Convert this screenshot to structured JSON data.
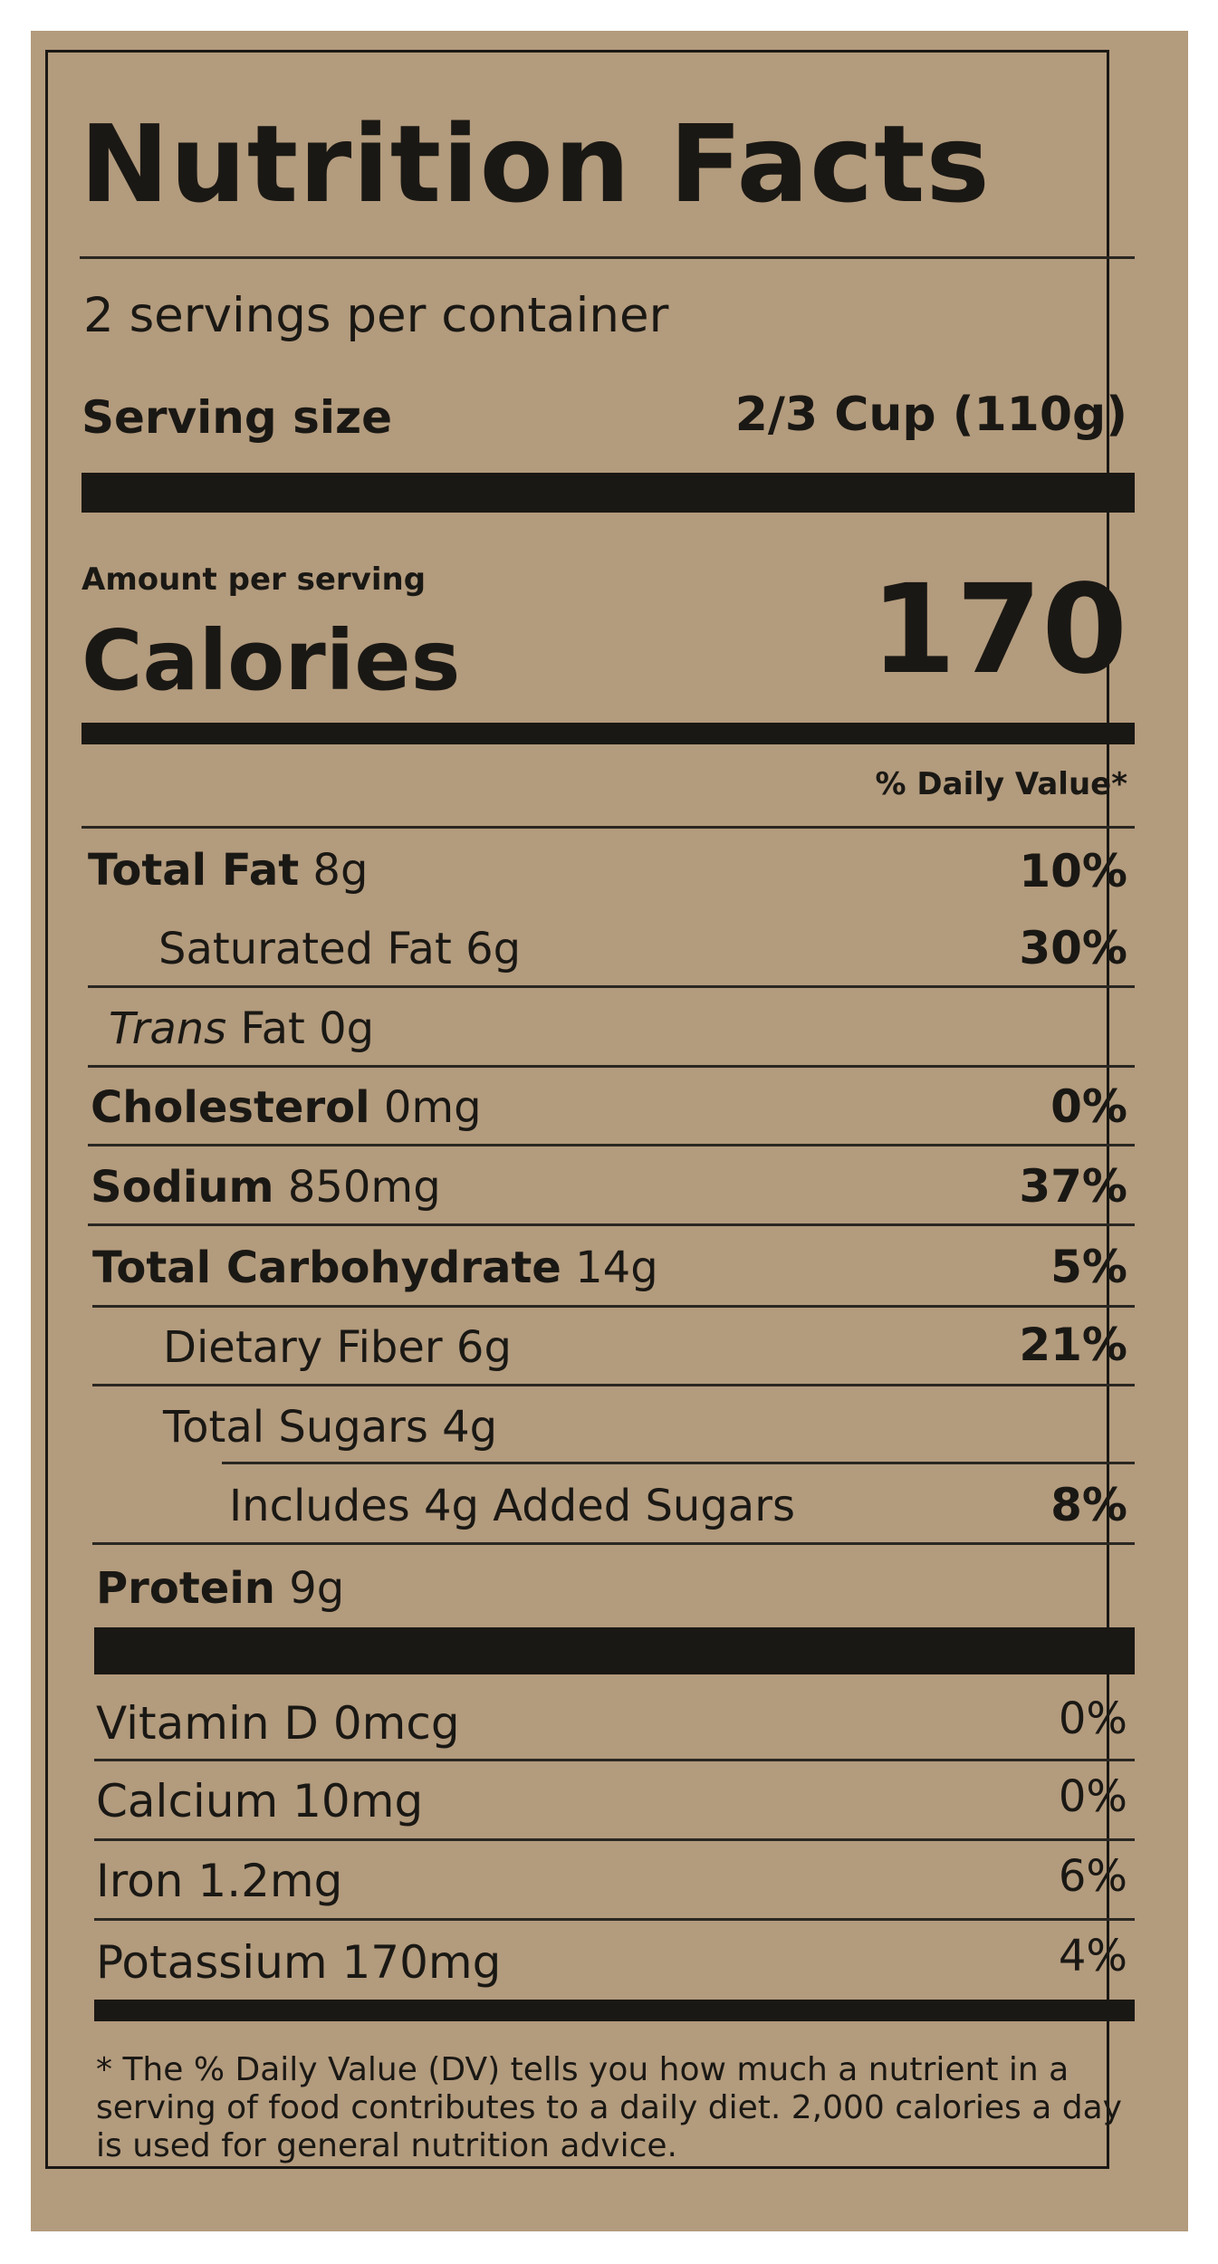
{
  "label": {
    "title": "Nutrition Facts",
    "servings_per_container": "2 servings per container",
    "serving_size_label": "Serving size",
    "serving_size_value": "2/3 Cup (110g)",
    "amount_per_serving": "Amount per serving",
    "calories_label": "Calories",
    "calories_value": "170",
    "daily_value_header": "% Daily Value*"
  },
  "nutrients": [
    {
      "name": "Total Fat",
      "amount": "8g",
      "dv": "10%"
    },
    {
      "name": "Saturated Fat",
      "amount": "6g",
      "dv": "30%"
    },
    {
      "name_italic": "Trans",
      "name": "Fat",
      "amount": "0g",
      "dv": ""
    },
    {
      "name": "Cholesterol",
      "amount": "0mg",
      "dv": "0%"
    },
    {
      "name": "Sodium",
      "amount": "850mg",
      "dv": "37%"
    },
    {
      "name": "Total Carbohydrate",
      "amount": "14g",
      "dv": "5%"
    },
    {
      "name": "Dietary Fiber",
      "amount": "6g",
      "dv": "21%"
    },
    {
      "name": "Total Sugars",
      "amount": "4g",
      "dv": ""
    },
    {
      "name": "Includes 4g Added Sugars",
      "amount": "",
      "dv": "8%"
    },
    {
      "name": "Protein",
      "amount": "9g",
      "dv": ""
    }
  ],
  "vitamins": [
    {
      "name": "Vitamin D 0mcg",
      "dv": "0%"
    },
    {
      "name": "Calcium 10mg",
      "dv": "0%"
    },
    {
      "name": "Iron 1.2mg",
      "dv": "6%"
    },
    {
      "name": "Potassium 170mg",
      "dv": "4%"
    }
  ],
  "footnote": "* The % Daily Value (DV) tells you how much a nutrient in a serving of food contributes to a daily diet. 2,000 calories a day is used for general nutrition advice.",
  "colors": {
    "kraft_background": "#b39b7d",
    "ink": "#1a1814"
  }
}
